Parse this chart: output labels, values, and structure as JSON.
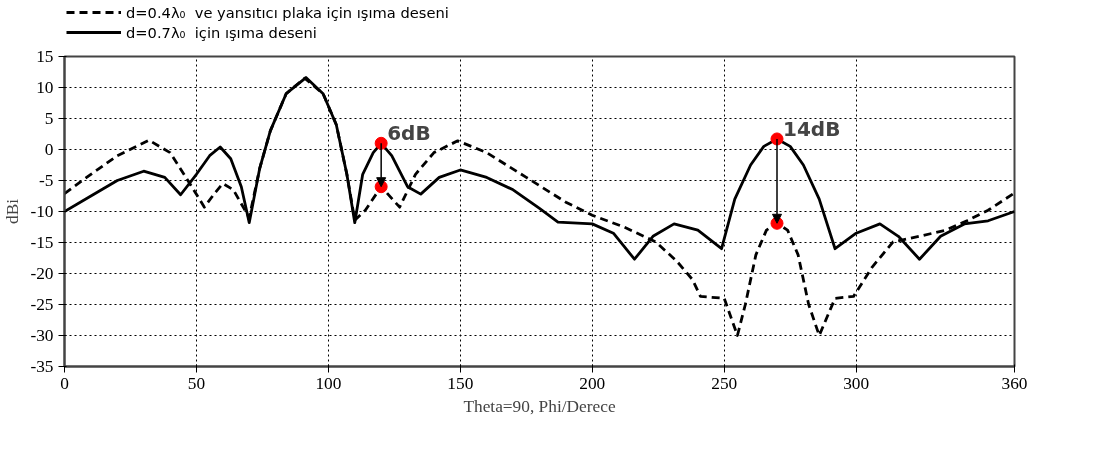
{
  "chart_data": {
    "type": "line",
    "xlabel": "Theta=90, Phi/Derece",
    "ylabel": "dBi",
    "xlim": [
      0,
      360
    ],
    "xticks": [
      0,
      50,
      100,
      150,
      200,
      250,
      300,
      360
    ],
    "ylim": [
      -35,
      15
    ],
    "yticks": [
      -35,
      -30,
      -25,
      -20,
      -15,
      -10,
      -5,
      0,
      5,
      10,
      15
    ],
    "grid": true,
    "legend": "top left",
    "line_style": "solid",
    "marker": "none",
    "series": [
      {
        "name": "d=0.4λ₀  ve yansıtıcı plaka için ışıma deseni",
        "color": "#000000",
        "line_style": "dashed",
        "x": [
          0,
          10,
          20,
          32,
          40,
          46,
          53,
          57,
          60,
          64,
          70,
          74,
          78,
          84,
          91,
          98,
          103,
          107,
          110,
          114,
          120,
          127,
          133,
          140,
          149,
          160,
          175,
          190,
          200,
          212,
          224,
          232,
          238,
          241,
          250,
          255,
          258,
          262,
          266,
          270,
          274,
          278,
          282,
          286,
          292,
          299,
          306,
          314,
          324,
          334,
          342,
          350,
          360
        ],
        "values": [
          -7.1,
          -4,
          -1,
          1.5,
          -0.5,
          -4.5,
          -9.3,
          -7,
          -5.5,
          -6.5,
          -11,
          -3,
          3,
          9,
          11.5,
          9,
          4,
          -4,
          -11.4,
          -9.8,
          -6,
          -9.3,
          -4,
          -0.5,
          1.4,
          -0.5,
          -4.5,
          -8.5,
          -10.6,
          -12.5,
          -14.9,
          -18,
          -21,
          -23.7,
          -24,
          -30,
          -25,
          -17,
          -13,
          -11.9,
          -13,
          -17,
          -25,
          -30,
          -24,
          -23.7,
          -19,
          -14.9,
          -14,
          -13,
          -11.5,
          -9.8,
          -7
        ]
      },
      {
        "name": "d=0.7λ₀  için ışıma deseni",
        "color": "#000000",
        "x": [
          0,
          10,
          20,
          30,
          38,
          44,
          50,
          55,
          59,
          63,
          67,
          70,
          74,
          78,
          84,
          91.5,
          98,
          103,
          107,
          110,
          113,
          117,
          120,
          124,
          130,
          135,
          142,
          150,
          160,
          170,
          180,
          187,
          200,
          208,
          216,
          223,
          231,
          240,
          249,
          254,
          260,
          265,
          270,
          275,
          280,
          286,
          292,
          300,
          309,
          316,
          324,
          332,
          341,
          350,
          360
        ],
        "values": [
          -10,
          -7.5,
          -5,
          -3.5,
          -4.5,
          -7.3,
          -4,
          -1,
          0.4,
          -1.5,
          -6,
          -11.8,
          -3,
          3,
          9,
          11.6,
          9,
          4,
          -4,
          -11.8,
          -4,
          -0.5,
          1,
          -1,
          -6,
          -7.2,
          -4.5,
          -3.3,
          -4.5,
          -6.5,
          -9.5,
          -11.7,
          -12,
          -13.5,
          -17.7,
          -14,
          -12,
          -13,
          -16,
          -8,
          -2.5,
          0.5,
          1.7,
          0.5,
          -2.5,
          -8,
          -16,
          -13.5,
          -12,
          -14,
          -17.7,
          -14,
          -12,
          -11.5,
          -10
        ]
      },
      {
        "type": "scatter",
        "color": "#ff0000",
        "marker": "circle",
        "x": [
          120,
          120,
          270,
          270
        ],
        "values": [
          1,
          -6,
          1.7,
          -11.9
        ]
      }
    ],
    "annotations": [
      {
        "text": "6dB",
        "x": 120,
        "y": 1
      },
      {
        "text": "14dB",
        "x": 270,
        "y": 1.7
      }
    ]
  }
}
